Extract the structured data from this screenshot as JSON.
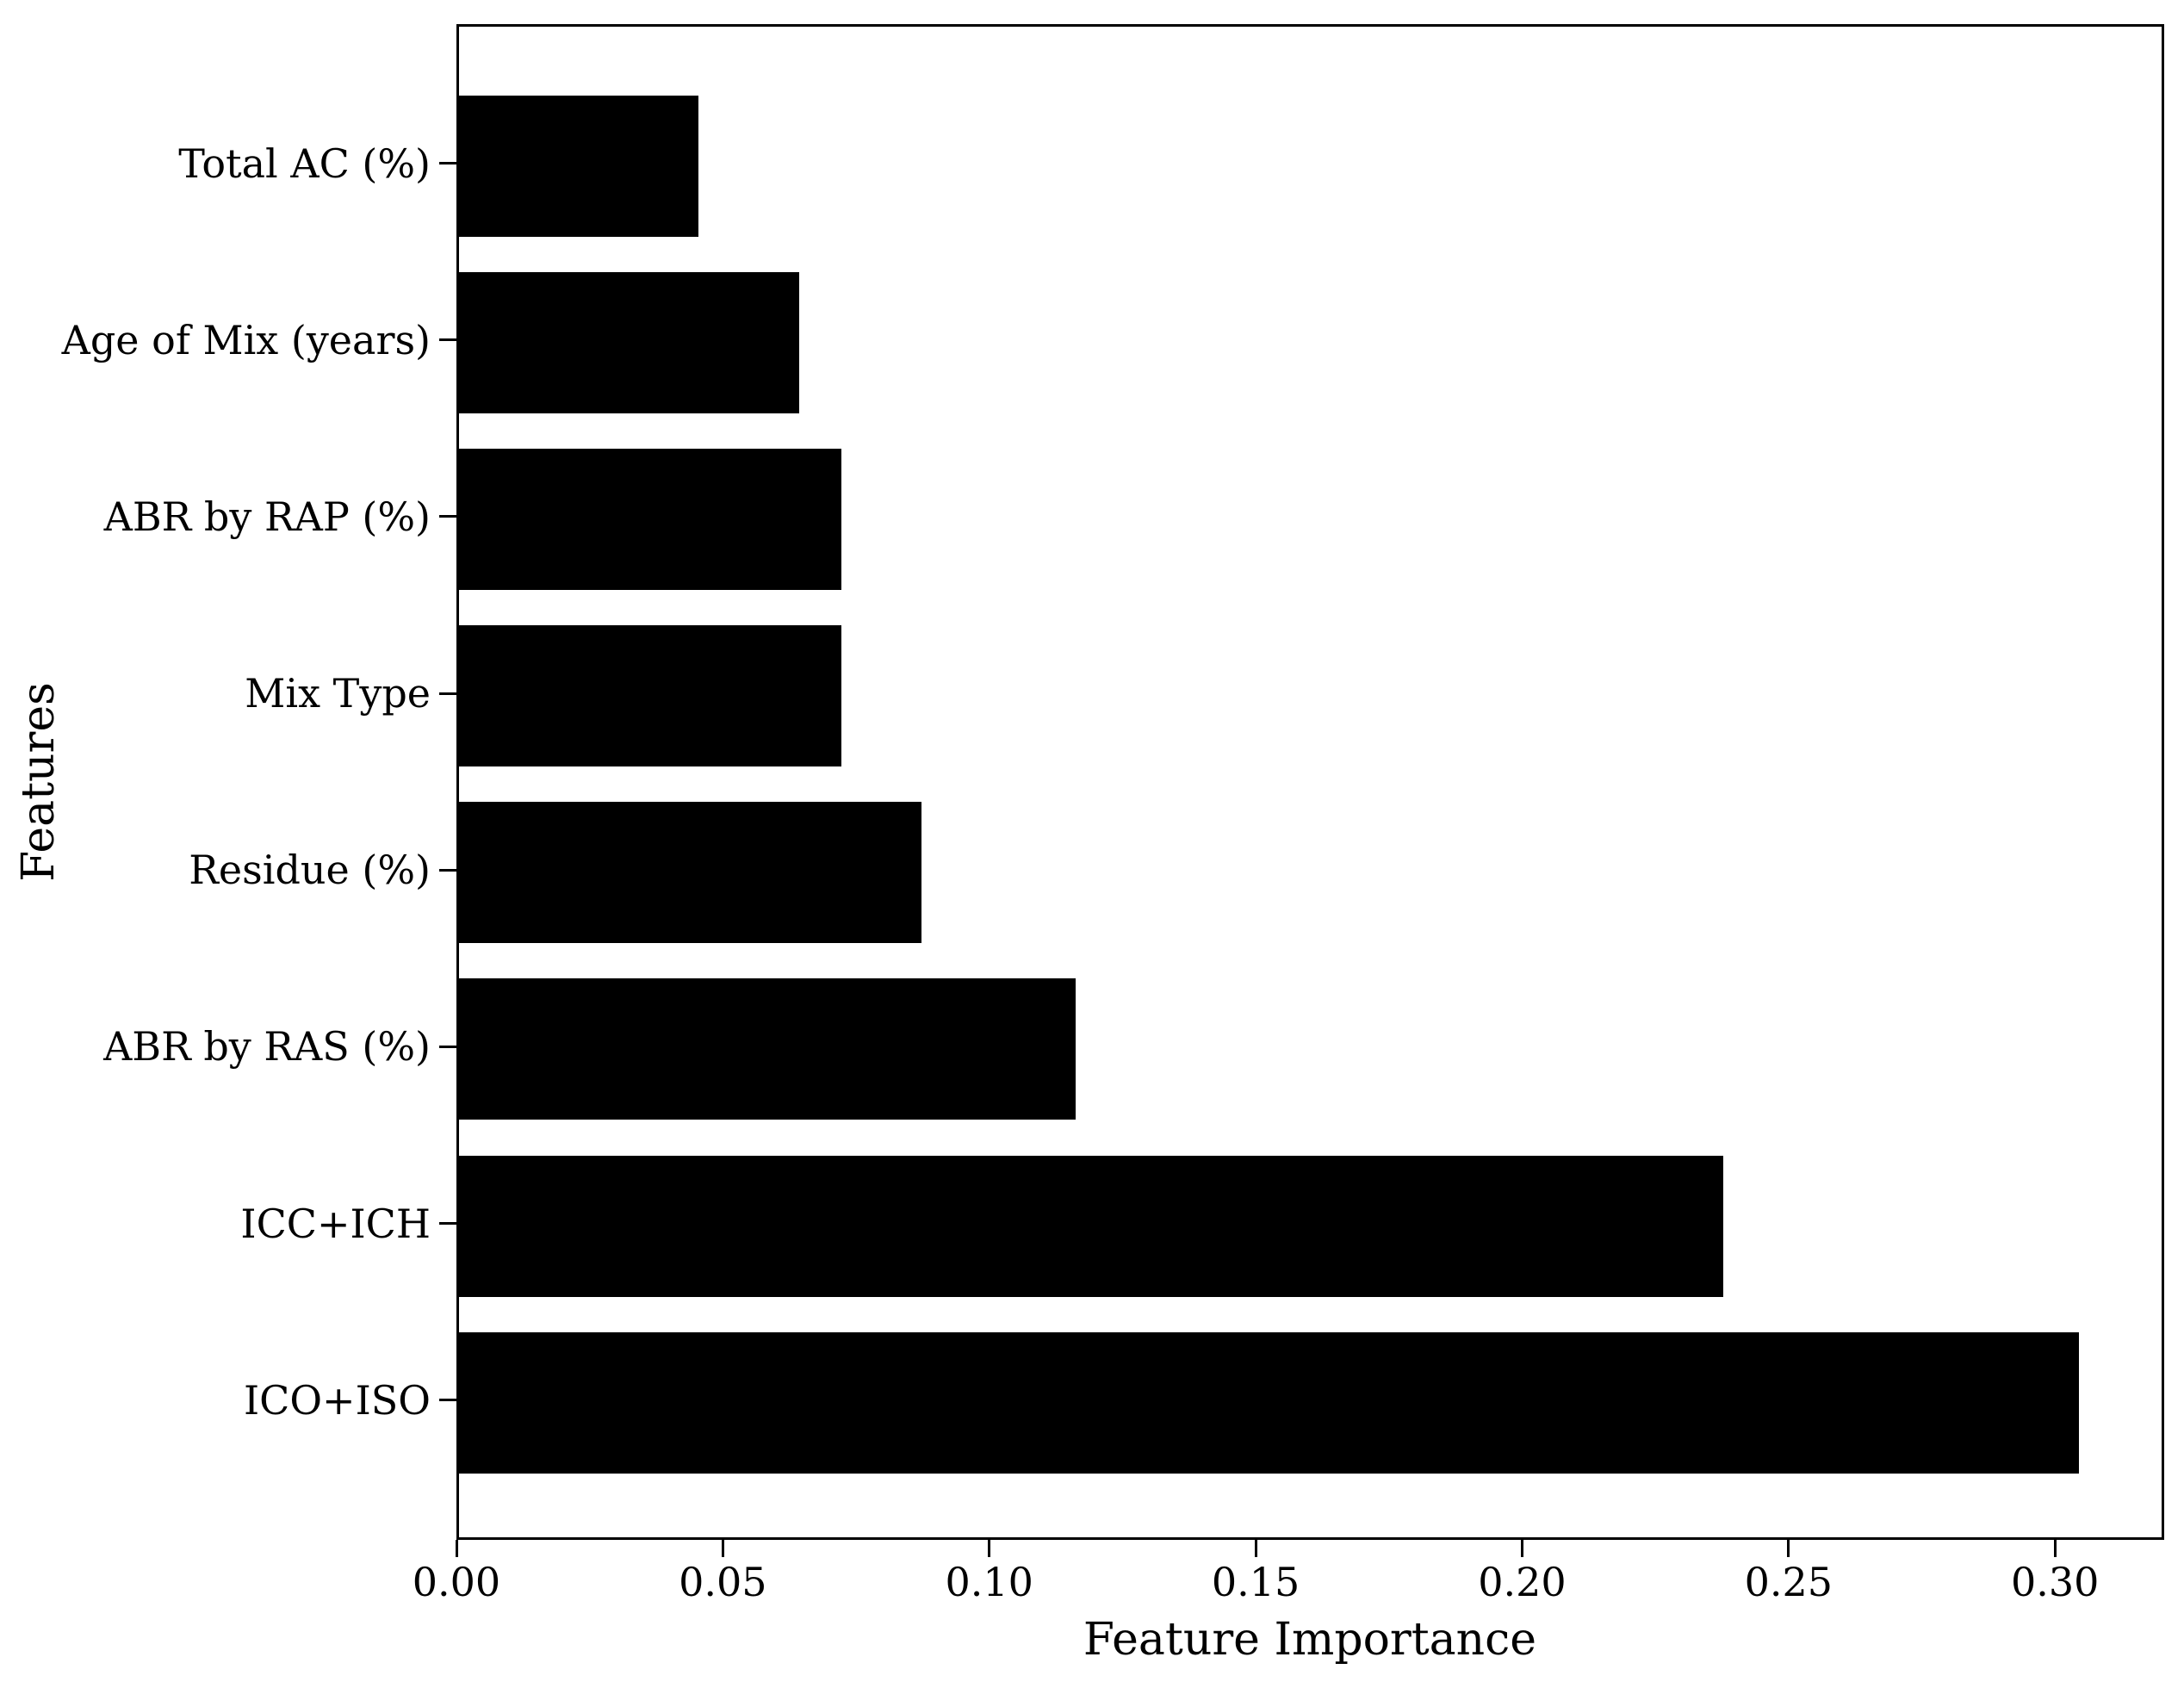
{
  "chart_data": {
    "type": "bar",
    "orientation": "horizontal",
    "title": "",
    "xlabel": "Feature Importance",
    "ylabel": "Features",
    "categories": [
      "Total AC (%)",
      "Age of Mix (years)",
      "ABR by RAP (%)",
      "Mix Type",
      "Residue (%)",
      "ABR by RAS (%)",
      "ICC+ICH",
      "ICO+ISO"
    ],
    "values": [
      0.045,
      0.064,
      0.072,
      0.072,
      0.087,
      0.116,
      0.238,
      0.305
    ],
    "xticks": [
      "0.00",
      "0.05",
      "0.10",
      "0.15",
      "0.20",
      "0.25",
      "0.30"
    ],
    "xtick_values": [
      0.0,
      0.05,
      0.1,
      0.15,
      0.2,
      0.25,
      0.3
    ],
    "xlim": [
      0,
      0.3205
    ],
    "grid": false,
    "bar_color": "#000000",
    "axis_color": "#000000",
    "text_color": "#000000",
    "background_color": "#ffffff"
  }
}
